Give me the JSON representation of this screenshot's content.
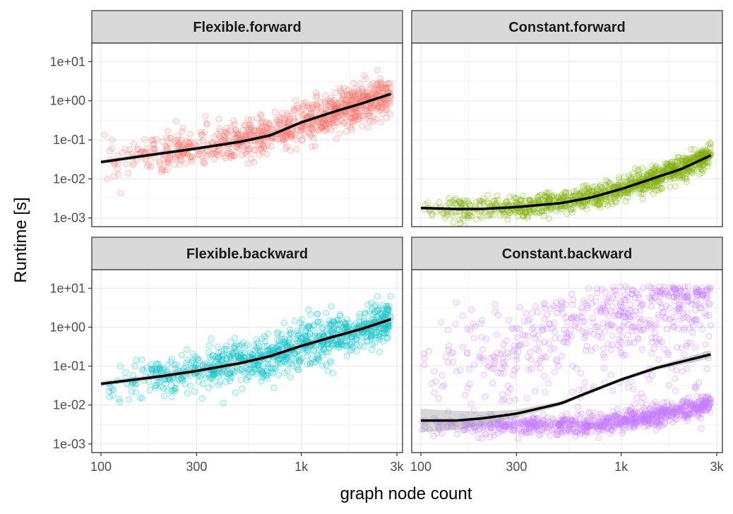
{
  "chart_data": {
    "type": "scatter",
    "xlabel": "graph node count",
    "ylabel": "Runtime [s]",
    "x_scale": "log",
    "y_scale": "log",
    "xlim": [
      90,
      3200
    ],
    "ylim": [
      0.0006,
      30
    ],
    "x_ticks": [
      {
        "value": 100,
        "label": "100"
      },
      {
        "value": 300,
        "label": "300"
      },
      {
        "value": 1000,
        "label": "1k"
      },
      {
        "value": 3000,
        "label": "3k"
      }
    ],
    "y_ticks": [
      {
        "value": 0.001,
        "label": "1e-03"
      },
      {
        "value": 0.01,
        "label": "1e-02"
      },
      {
        "value": 0.1,
        "label": "1e-01"
      },
      {
        "value": 1,
        "label": "1e+00"
      },
      {
        "value": 10,
        "label": "1e+01"
      }
    ],
    "grid": true,
    "legend": "none",
    "trend": "smoothed fit line with confidence band",
    "panels": [
      {
        "title": "Flexible.forward",
        "color": "#F8766D",
        "points": {
          "x_range": [
            100,
            2800
          ],
          "n": 900,
          "spread_log10": 0.25
        },
        "smooth": {
          "x": [
            100,
            200,
            300,
            500,
            700,
            1000,
            1500,
            2000,
            2800
          ],
          "y": [
            0.027,
            0.045,
            0.06,
            0.09,
            0.13,
            0.28,
            0.55,
            0.85,
            1.5
          ],
          "band_log10": 0.05
        }
      },
      {
        "title": "Constant.forward",
        "color": "#7CAE00",
        "points": {
          "x_range": [
            100,
            2800
          ],
          "n": 900,
          "spread_log10": 0.15
        },
        "smooth": {
          "x": [
            100,
            150,
            200,
            300,
            500,
            700,
            1000,
            1500,
            2000,
            2800
          ],
          "y": [
            0.0018,
            0.0017,
            0.0017,
            0.0019,
            0.0024,
            0.0033,
            0.0055,
            0.011,
            0.018,
            0.04
          ],
          "band_log10": 0.04
        }
      },
      {
        "title": "Flexible.backward",
        "color": "#00BFC4",
        "points": {
          "x_range": [
            100,
            2800
          ],
          "n": 900,
          "spread_log10": 0.28
        },
        "smooth": {
          "x": [
            100,
            200,
            300,
            500,
            700,
            1000,
            1500,
            2000,
            2800
          ],
          "y": [
            0.035,
            0.055,
            0.075,
            0.12,
            0.18,
            0.33,
            0.6,
            0.9,
            1.6
          ],
          "band_log10": 0.06
        }
      },
      {
        "title": "Constant.backward",
        "color": "#C77CFF",
        "points": {
          "x_range": [
            100,
            2800
          ],
          "n": 1400,
          "bimodal": true
        },
        "smooth": {
          "x": [
            100,
            150,
            200,
            300,
            500,
            700,
            1000,
            1500,
            2000,
            2800
          ],
          "y": [
            0.004,
            0.004,
            0.0045,
            0.006,
            0.011,
            0.022,
            0.045,
            0.09,
            0.13,
            0.2
          ],
          "band_log10": [
            0.3,
            0.25,
            0.18,
            0.1,
            0.06,
            0.05,
            0.05,
            0.06,
            0.08,
            0.1
          ]
        }
      }
    ]
  }
}
